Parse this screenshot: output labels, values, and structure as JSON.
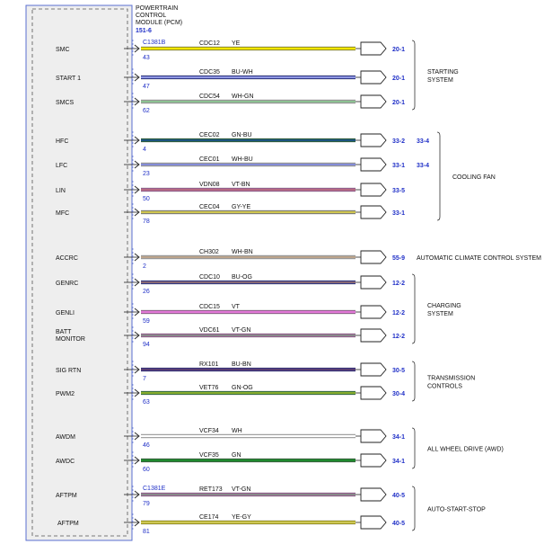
{
  "module": {
    "title_lines": [
      "POWERTRAIN",
      "CONTROL",
      "MODULE (PCM)"
    ],
    "ref": "151-6"
  },
  "connectors": [
    {
      "id": "c1",
      "label": "C1381B"
    },
    {
      "id": "c2",
      "label": "C1381E"
    }
  ],
  "wires": [
    {
      "pin_label": "SMC",
      "pin": "43",
      "circuit": "CDC12",
      "color_code": "YE",
      "colors": [
        "#f2e600"
      ],
      "ref": "20-1",
      "connector_id": "c1"
    },
    {
      "pin_label": "START 1",
      "pin": "47",
      "circuit": "CDC35",
      "color_code": "BU-WH",
      "colors": [
        "#1f2fc7",
        "#ffffff"
      ],
      "ref": "20-1"
    },
    {
      "pin_label": "SMCS",
      "pin": "62",
      "circuit": "CDC54",
      "color_code": "WH-GN",
      "colors": [
        "#e9e9e9",
        "#2e9a3c"
      ],
      "ref": "20-1"
    },
    {
      "pin_label": "HFC",
      "pin": "4",
      "circuit": "CEC02",
      "color_code": "GN-BU",
      "colors": [
        "#1a7a3a",
        "#1f2fc7"
      ],
      "ref": "33-2",
      "ref2": "33-4"
    },
    {
      "pin_label": "LFC",
      "pin": "23",
      "circuit": "CEC01",
      "color_code": "WH-BU",
      "colors": [
        "#e9e9e9",
        "#1f2fc7"
      ],
      "ref": "33-1",
      "ref2": "33-4"
    },
    {
      "pin_label": "LIN",
      "pin": "50",
      "circuit": "VDN08",
      "color_code": "VT-BN",
      "colors": [
        "#e37ad8",
        "#8a5a2b"
      ],
      "ref": "33-5"
    },
    {
      "pin_label": "MFC",
      "pin": "78",
      "circuit": "CEC04",
      "color_code": "GY-YE",
      "colors": [
        "#b9b9a0",
        "#e6d200"
      ],
      "ref": "33-1"
    },
    {
      "pin_label": "ACCRC",
      "pin": "2",
      "circuit": "CH302",
      "color_code": "WH-BN",
      "colors": [
        "#eeeeee",
        "#8a5a2b"
      ],
      "ref": "55-9"
    },
    {
      "pin_label": "GENRC",
      "pin": "26",
      "circuit": "CDC10",
      "color_code": "BU-OG",
      "colors": [
        "#1f2fc7",
        "#f0a020"
      ],
      "ref": "12-2"
    },
    {
      "pin_label": "GENLI",
      "pin": "59",
      "circuit": "CDC15",
      "color_code": "VT",
      "colors": [
        "#e37ad8"
      ],
      "ref": "12-2"
    },
    {
      "pin_label": "BATT MONITOR",
      "pin": "94",
      "circuit": "VDC61",
      "color_code": "VT-GN",
      "colors": [
        "#e37ad8",
        "#2e9a3c"
      ],
      "ref": "12-2"
    },
    {
      "pin_label": "SIG RTN",
      "pin": "7",
      "circuit": "RX101",
      "color_code": "BU-BN",
      "colors": [
        "#2a22b8",
        "#8a5a2b"
      ],
      "ref": "30-5"
    },
    {
      "pin_label": "PWM2",
      "pin": "63",
      "circuit": "VET76",
      "color_code": "GN-OG",
      "colors": [
        "#2e9a3c",
        "#e0c020"
      ],
      "ref": "30-4"
    },
    {
      "pin_label": "AWDM",
      "pin": "46",
      "circuit": "VCF34",
      "color_code": "WH",
      "colors": [
        "#ffffff"
      ],
      "ref": "34-1"
    },
    {
      "pin_label": "AWDC",
      "pin": "60",
      "circuit": "VCF35",
      "color_code": "GN",
      "colors": [
        "#1f8a2e"
      ],
      "ref": "34-1"
    },
    {
      "pin_label": "AFTPM",
      "pin": "79",
      "circuit": "RET173",
      "color_code": "VT-GN",
      "colors": [
        "#e37ad8",
        "#2e9a3c"
      ],
      "ref": "40-5",
      "connector_id": "c2"
    },
    {
      "pin_label": "AFTPM",
      "pin": "81",
      "circuit": "CE174",
      "color_code": "YE-GY",
      "colors": [
        "#f2e600",
        "#aaaaaa"
      ],
      "ref": "40-5"
    }
  ],
  "groups": [
    {
      "name": "starting",
      "label_lines": [
        "STARTING",
        "SYSTEM"
      ],
      "first": 0,
      "last": 2
    },
    {
      "name": "cooling-fan",
      "label_lines": [
        "COOLING FAN"
      ],
      "first": 3,
      "last": 6,
      "double": true
    },
    {
      "name": "climate",
      "label_lines": [
        "AUTOMATIC CLIMATE CONTROL SYSTEM"
      ],
      "first": 7,
      "last": 7,
      "single": true
    },
    {
      "name": "charging",
      "label_lines": [
        "CHARGING",
        "SYSTEM"
      ],
      "first": 8,
      "last": 10
    },
    {
      "name": "transmission",
      "label_lines": [
        "TRANSMISSION",
        "CONTROLS"
      ],
      "first": 11,
      "last": 12
    },
    {
      "name": "awd",
      "label_lines": [
        "ALL WHEEL DRIVE (AWD)"
      ],
      "first": 13,
      "last": 14
    },
    {
      "name": "auto-start-stop",
      "label_lines": [
        "AUTO-START-STOP"
      ],
      "first": 15,
      "last": 16
    }
  ]
}
